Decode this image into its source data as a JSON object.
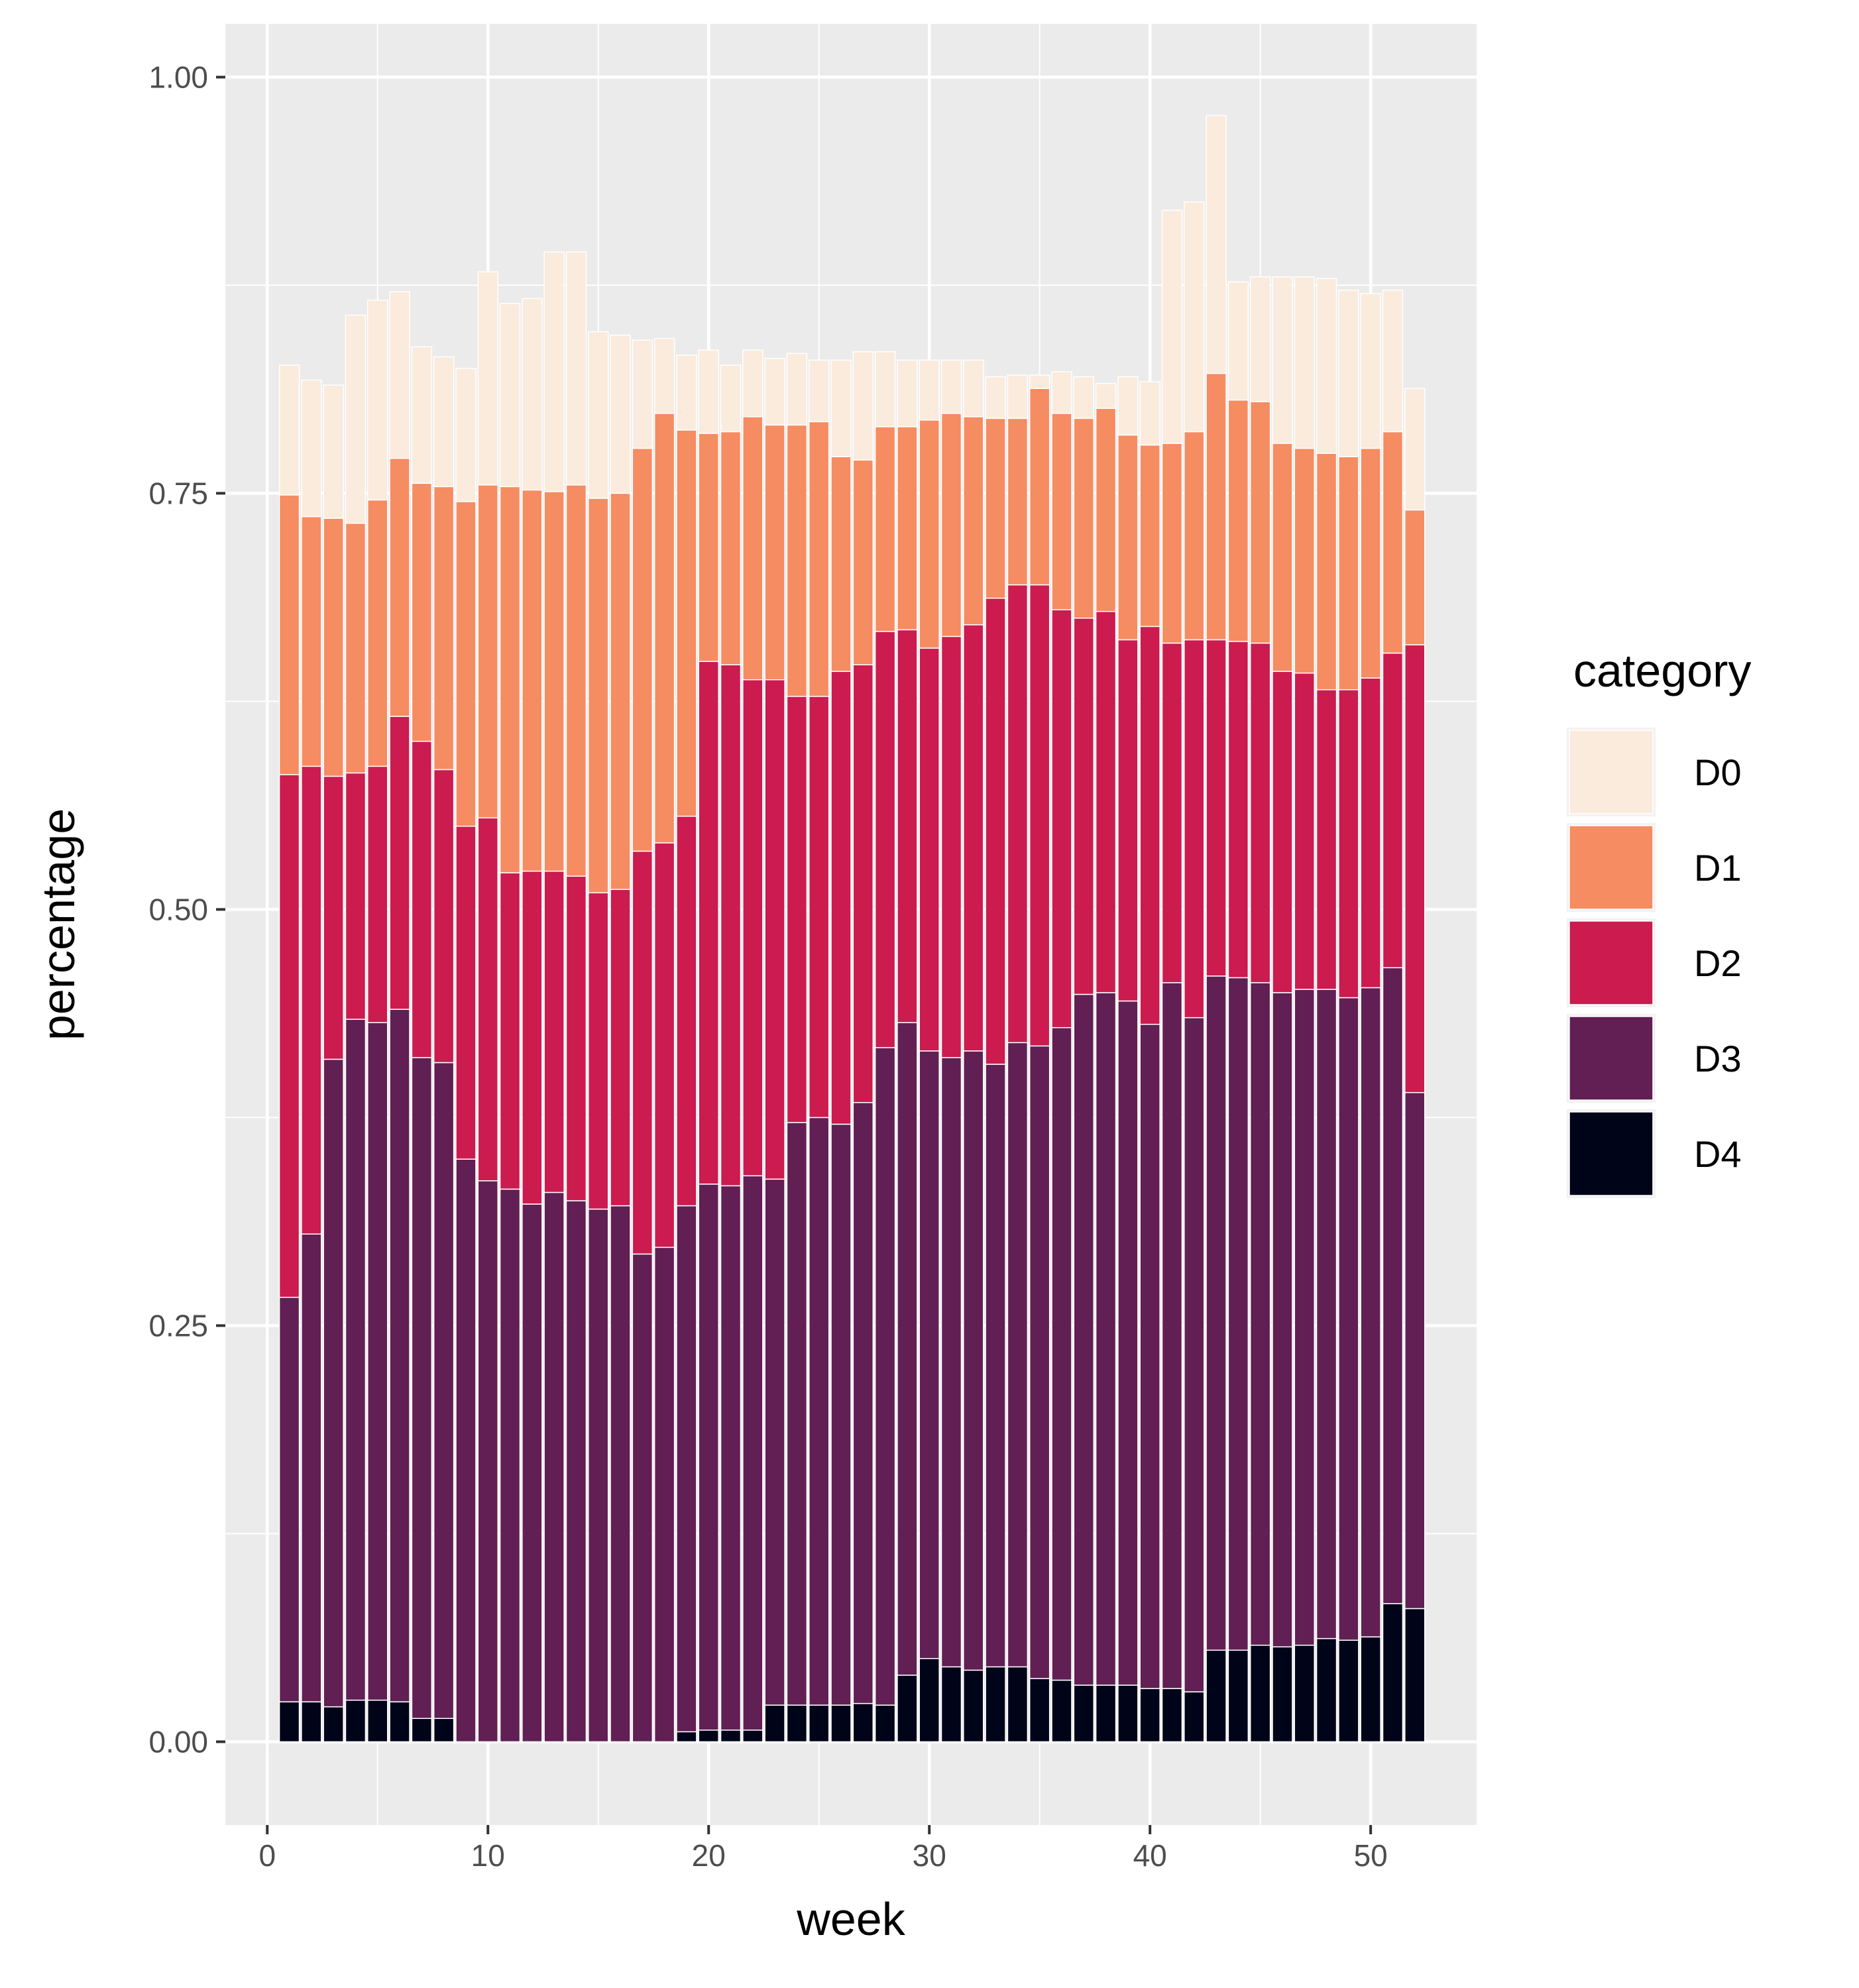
{
  "chart_data": {
    "type": "bar",
    "stacked": true,
    "xlabel": "week",
    "ylabel": "percentage",
    "xlim": [
      -1.9,
      54.8
    ],
    "ylim": [
      -0.05,
      1.032
    ],
    "x_ticks": [
      0,
      10,
      20,
      30,
      40,
      50
    ],
    "y_ticks": [
      0.0,
      0.25,
      0.5,
      0.75,
      1.0
    ],
    "y_tick_labels": [
      "0.00",
      "0.25",
      "0.50",
      "0.75",
      "1.00"
    ],
    "grid": true,
    "legend": {
      "title": "category",
      "placement": "right"
    },
    "x": [
      1,
      2,
      3,
      4,
      5,
      6,
      7,
      8,
      9,
      10,
      11,
      12,
      13,
      14,
      15,
      16,
      17,
      18,
      19,
      20,
      21,
      22,
      23,
      24,
      25,
      26,
      27,
      28,
      29,
      30,
      31,
      32,
      33,
      34,
      35,
      36,
      37,
      38,
      39,
      40,
      41,
      42,
      43,
      44,
      45,
      46,
      47,
      48,
      49,
      50,
      51,
      52
    ],
    "series": [
      {
        "name": "D4",
        "color": "#000419",
        "values": [
          0.024,
          0.024,
          0.021,
          0.025,
          0.025,
          0.024,
          0.014,
          0.014,
          0,
          0,
          0,
          0,
          0,
          0,
          0,
          0,
          0,
          0,
          0.006,
          0.007,
          0.007,
          0.007,
          0.022,
          0.022,
          0.022,
          0.022,
          0.023,
          0.022,
          0.04,
          0.05,
          0.045,
          0.043,
          0.045,
          0.045,
          0.038,
          0.037,
          0.034,
          0.034,
          0.034,
          0.032,
          0.032,
          0.03,
          0.055,
          0.055,
          0.058,
          0.057,
          0.058,
          0.062,
          0.061,
          0.063,
          0.083,
          0.08
        ]
      },
      {
        "name": "D3",
        "color": "#611f53",
        "values": [
          0.243,
          0.281,
          0.389,
          0.409,
          0.407,
          0.416,
          0.397,
          0.394,
          0.35,
          0.337,
          0.332,
          0.323,
          0.33,
          0.325,
          0.32,
          0.322,
          0.293,
          0.297,
          0.316,
          0.328,
          0.327,
          0.333,
          0.316,
          0.35,
          0.353,
          0.349,
          0.361,
          0.395,
          0.392,
          0.365,
          0.366,
          0.372,
          0.362,
          0.375,
          0.38,
          0.392,
          0.415,
          0.416,
          0.411,
          0.399,
          0.424,
          0.405,
          0.405,
          0.404,
          0.398,
          0.393,
          0.394,
          0.39,
          0.386,
          0.39,
          0.382,
          0.31
        ]
      },
      {
        "name": "D2",
        "color": "#cb1b4f",
        "values": [
          0.314,
          0.281,
          0.17,
          0.148,
          0.154,
          0.176,
          0.19,
          0.176,
          0.2,
          0.218,
          0.19,
          0.2,
          0.193,
          0.195,
          0.19,
          0.19,
          0.242,
          0.243,
          0.234,
          0.314,
          0.313,
          0.298,
          0.3,
          0.256,
          0.253,
          0.272,
          0.263,
          0.25,
          0.236,
          0.242,
          0.253,
          0.256,
          0.28,
          0.275,
          0.277,
          0.251,
          0.226,
          0.229,
          0.217,
          0.239,
          0.204,
          0.227,
          0.202,
          0.202,
          0.204,
          0.193,
          0.19,
          0.18,
          0.185,
          0.186,
          0.189,
          0.269
        ]
      },
      {
        "name": "D1",
        "color": "#f68c61",
        "values": [
          0.168,
          0.15,
          0.155,
          0.15,
          0.16,
          0.155,
          0.155,
          0.17,
          0.195,
          0.2,
          0.232,
          0.229,
          0.228,
          0.235,
          0.237,
          0.238,
          0.242,
          0.258,
          0.232,
          0.137,
          0.14,
          0.158,
          0.153,
          0.163,
          0.165,
          0.129,
          0.123,
          0.123,
          0.122,
          0.137,
          0.134,
          0.125,
          0.108,
          0.1,
          0.118,
          0.118,
          0.12,
          0.122,
          0.123,
          0.109,
          0.12,
          0.125,
          0.16,
          0.145,
          0.145,
          0.137,
          0.135,
          0.142,
          0.14,
          0.138,
          0.133,
          0.081
        ]
      },
      {
        "name": "D0",
        "color": "#faebdd",
        "values": [
          0.078,
          0.082,
          0.08,
          0.125,
          0.12,
          0.1,
          0.082,
          0.078,
          0.08,
          0.128,
          0.11,
          0.115,
          0.144,
          0.14,
          0.1,
          0.095,
          0.065,
          0.045,
          0.045,
          0.05,
          0.04,
          0.04,
          0.04,
          0.043,
          0.037,
          0.058,
          0.065,
          0.045,
          0.04,
          0.036,
          0.032,
          0.034,
          0.025,
          0.026,
          0.008,
          0.025,
          0.025,
          0.015,
          0.035,
          0.038,
          0.14,
          0.138,
          0.155,
          0.071,
          0.075,
          0.1,
          0.103,
          0.105,
          0.1,
          0.093,
          0.085,
          0.073
        ]
      }
    ]
  }
}
